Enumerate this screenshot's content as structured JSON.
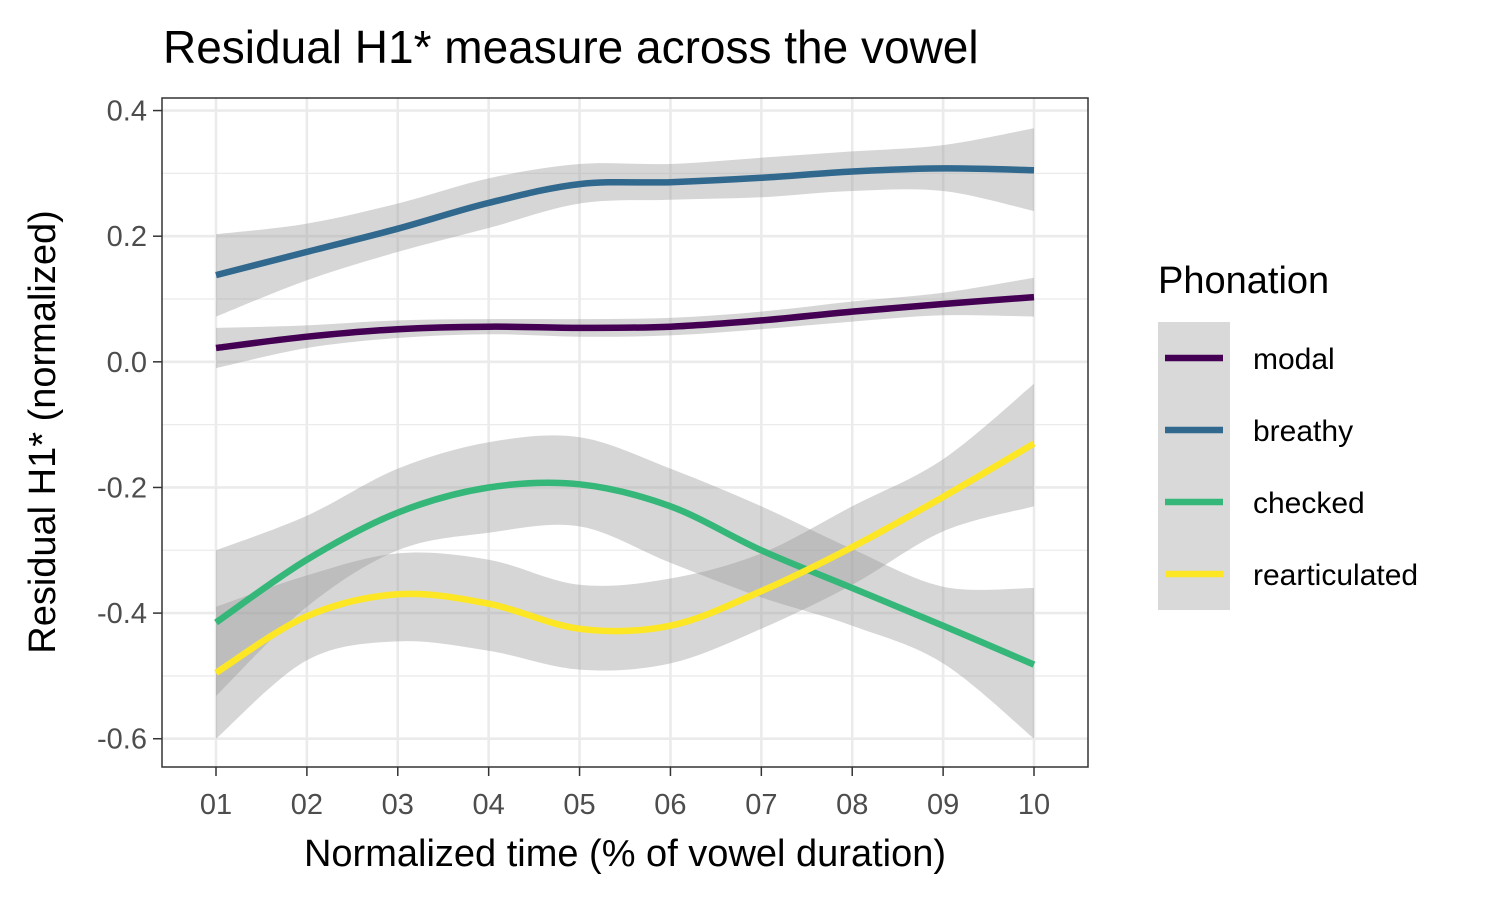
{
  "chart_data": {
    "type": "line",
    "title": "Residual H1* measure across the vowel",
    "xlabel": "Normalized time (% of vowel duration)",
    "ylabel": "Residual H1* (normalized)",
    "x": [
      "01",
      "02",
      "03",
      "04",
      "05",
      "06",
      "07",
      "08",
      "09",
      "10"
    ],
    "yticks": [
      0.4,
      0.2,
      0.0,
      -0.2,
      -0.4,
      -0.6
    ],
    "ytick_labels": [
      "0.4",
      "0.2",
      "0.0",
      "-0.2",
      "-0.4",
      "-0.6"
    ],
    "ylim": [
      -0.645,
      0.42
    ],
    "grid": true,
    "legend": {
      "title": "Phonation",
      "position": "right"
    },
    "series": [
      {
        "name": "modal",
        "color": "#440154",
        "values": [
          0.022,
          0.04,
          0.052,
          0.056,
          0.054,
          0.056,
          0.066,
          0.08,
          0.092,
          0.103
        ],
        "ci_lower": [
          -0.01,
          0.022,
          0.038,
          0.044,
          0.04,
          0.042,
          0.052,
          0.064,
          0.074,
          0.072
        ],
        "ci_upper": [
          0.054,
          0.058,
          0.066,
          0.068,
          0.068,
          0.07,
          0.08,
          0.096,
          0.11,
          0.134
        ]
      },
      {
        "name": "breathy",
        "color": "#31688E",
        "values": [
          0.138,
          0.175,
          0.212,
          0.253,
          0.283,
          0.286,
          0.293,
          0.303,
          0.308,
          0.305
        ],
        "ci_lower": [
          0.072,
          0.13,
          0.175,
          0.213,
          0.252,
          0.258,
          0.262,
          0.272,
          0.272,
          0.24
        ],
        "ci_upper": [
          0.203,
          0.22,
          0.252,
          0.292,
          0.315,
          0.315,
          0.325,
          0.335,
          0.345,
          0.372
        ]
      },
      {
        "name": "checked",
        "color": "#35B779",
        "values": [
          -0.415,
          -0.315,
          -0.24,
          -0.2,
          -0.195,
          -0.23,
          -0.3,
          -0.36,
          -0.42,
          -0.482
        ],
        "ci_lower": [
          -0.532,
          -0.39,
          -0.3,
          -0.272,
          -0.262,
          -0.32,
          -0.375,
          -0.42,
          -0.48,
          -0.6
        ],
        "ci_upper": [
          -0.3,
          -0.245,
          -0.17,
          -0.128,
          -0.12,
          -0.17,
          -0.23,
          -0.298,
          -0.358,
          -0.36
        ]
      },
      {
        "name": "rearticulated",
        "color": "#FDE725",
        "values": [
          -0.495,
          -0.405,
          -0.37,
          -0.385,
          -0.425,
          -0.42,
          -0.365,
          -0.295,
          -0.215,
          -0.13
        ],
        "ci_lower": [
          -0.6,
          -0.475,
          -0.445,
          -0.46,
          -0.49,
          -0.48,
          -0.425,
          -0.355,
          -0.27,
          -0.23
        ],
        "ci_upper": [
          -0.39,
          -0.34,
          -0.305,
          -0.315,
          -0.355,
          -0.345,
          -0.305,
          -0.23,
          -0.155,
          -0.035
        ]
      }
    ]
  }
}
